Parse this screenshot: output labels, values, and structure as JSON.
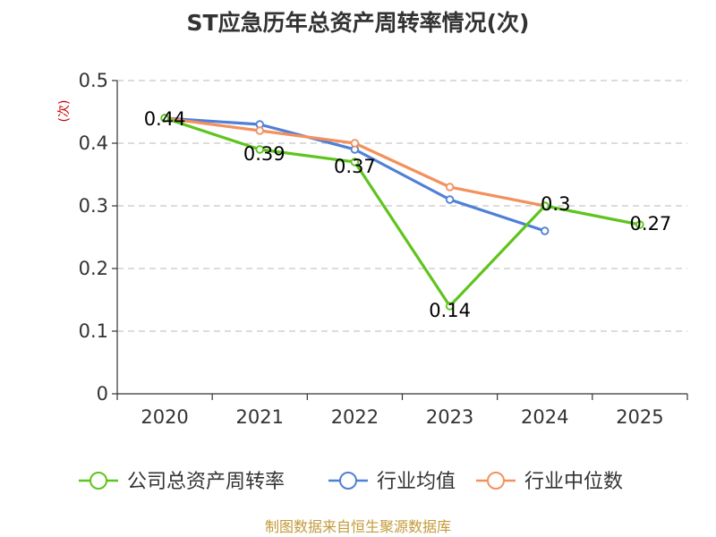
{
  "chart_data": {
    "type": "line",
    "title": "ST应急历年总资产周转率情况(次)",
    "ylabel": "(次)",
    "xlabel": "",
    "categories": [
      "2020",
      "2021",
      "2022",
      "2023",
      "2024",
      "2025"
    ],
    "ylim": [
      0,
      0.5
    ],
    "yticks": [
      {
        "value": 0,
        "label": "0"
      },
      {
        "value": 0.1,
        "label": "0.1"
      },
      {
        "value": 0.2,
        "label": "0.2"
      },
      {
        "value": 0.3,
        "label": "0.3"
      },
      {
        "value": 0.4,
        "label": "0.4"
      },
      {
        "value": 0.5,
        "label": "0.5"
      }
    ],
    "grid": true,
    "legend_position": "bottom",
    "series": [
      {
        "name": "公司总资产周转率",
        "color": "#5fc41e",
        "values": [
          0.44,
          0.39,
          0.37,
          0.14,
          0.3,
          0.27
        ],
        "labels": [
          "0.44",
          "0.39",
          "0.37",
          "0.14",
          "0.3",
          "0.27"
        ]
      },
      {
        "name": "行业均值",
        "color": "#4f80d6",
        "values": [
          0.44,
          0.43,
          0.39,
          0.31,
          0.26,
          null
        ]
      },
      {
        "name": "行业中位数",
        "color": "#f3915e",
        "values": [
          0.44,
          0.42,
          0.4,
          0.33,
          0.3,
          null
        ]
      }
    ]
  },
  "source": "制图数据来自恒生聚源数据库"
}
